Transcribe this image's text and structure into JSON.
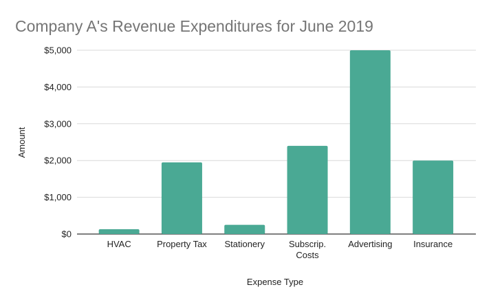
{
  "chart_data": {
    "type": "bar",
    "title": "Company A's Revenue Expenditures for June 2019",
    "xlabel": "Expense Type",
    "ylabel": "Amount",
    "categories": [
      [
        "HVAC"
      ],
      [
        "Property Tax"
      ],
      [
        "Stationery"
      ],
      [
        "Subscrip.",
        "Costs"
      ],
      [
        "Advertising"
      ],
      [
        "Insurance"
      ]
    ],
    "values": [
      130,
      1950,
      250,
      2400,
      5000,
      2000
    ],
    "ylim": [
      0,
      5000
    ],
    "yticks": [
      0,
      1000,
      2000,
      3000,
      4000,
      5000
    ],
    "ytick_labels": [
      "$0",
      "$1,000",
      "$2,000",
      "$3,000",
      "$4,000",
      "$5,000"
    ],
    "grid": true,
    "legend": "none",
    "colors": {
      "bar": "#4aa994",
      "title": "#757575",
      "grid": "#d9d9d9",
      "axis": "#333333"
    }
  }
}
